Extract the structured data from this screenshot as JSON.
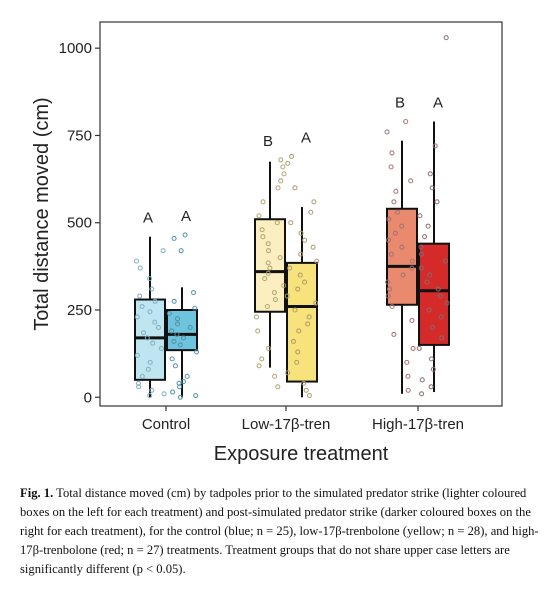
{
  "chart_data": {
    "type": "box",
    "xlabel": "Exposure treatment",
    "ylabel": "Total distance moved (cm)",
    "ylim": [
      -25,
      1075
    ],
    "yticks": [
      0,
      250,
      500,
      750,
      1000
    ],
    "ytick_labels": [
      "0",
      "250",
      "500",
      "750",
      "1000"
    ],
    "categories": [
      "Control",
      "Low-17β-tren",
      "High-17β-tren"
    ],
    "groups": [
      {
        "category": "Control",
        "boxes": [
          {
            "phase": "pre",
            "letter": "A",
            "fill": "#bfe6f0",
            "dot": "#7aaec0",
            "min": 0,
            "q1": 50,
            "median": 170,
            "q3": 280,
            "max": 460,
            "points": [
              5,
              20,
              40,
              60,
              80,
              100,
              120,
              140,
              155,
              170,
              185,
              200,
              215,
              230,
              245,
              260,
              275,
              290,
              310,
              340,
              370,
              390,
              420,
              10,
              30
            ]
          },
          {
            "phase": "post",
            "letter": "A",
            "fill": "#6ec4dc",
            "dot": "#4f8fa6",
            "min": 0,
            "q1": 135,
            "median": 180,
            "q3": 250,
            "max": 315,
            "points": [
              0,
              5,
              15,
              30,
              45,
              60,
              90,
              110,
              130,
              150,
              160,
              170,
              180,
              190,
              200,
              210,
              225,
              240,
              255,
              275,
              300,
              420,
              455,
              465,
              40
            ]
          }
        ]
      },
      {
        "category": "Low-17β-tren",
        "boxes": [
          {
            "phase": "pre",
            "letter": "B",
            "fill": "#fbefc0",
            "dot": "#b0a070",
            "min": 85,
            "q1": 245,
            "median": 360,
            "q3": 510,
            "max": 675,
            "points": [
              30,
              60,
              90,
              110,
              140,
              190,
              230,
              260,
              280,
              300,
              320,
              340,
              355,
              370,
              385,
              400,
              420,
              440,
              460,
              480,
              500,
              520,
              560,
              600,
              620,
              640,
              660,
              680
            ]
          },
          {
            "phase": "post",
            "letter": "A",
            "fill": "#f7e27c",
            "dot": "#a89a6a",
            "min": 0,
            "q1": 45,
            "median": 260,
            "q3": 385,
            "max": 545,
            "points": [
              5,
              20,
              40,
              70,
              100,
              130,
              160,
              190,
              210,
              230,
              250,
              270,
              290,
              310,
              330,
              350,
              370,
              390,
              410,
              430,
              450,
              470,
              500,
              530,
              560,
              600,
              670,
              690
            ]
          }
        ]
      },
      {
        "category": "High-17β-tren",
        "boxes": [
          {
            "phase": "pre",
            "letter": "B",
            "fill": "#e98a6e",
            "dot": "#a07070",
            "min": 10,
            "q1": 265,
            "median": 375,
            "q3": 540,
            "max": 735,
            "points": [
              20,
              60,
              100,
              140,
              180,
              220,
              260,
              290,
              310,
              330,
              350,
              370,
              390,
              410,
              430,
              450,
              470,
              490,
              510,
              530,
              560,
              590,
              620,
              660,
              700,
              760,
              790
            ]
          },
          {
            "phase": "post",
            "letter": "A",
            "fill": "#d42a2a",
            "dot": "#8a6a6a",
            "min": 15,
            "q1": 150,
            "median": 305,
            "q3": 440,
            "max": 790,
            "points": [
              10,
              30,
              50,
              80,
              110,
              140,
              170,
              200,
              230,
              250,
              270,
              290,
              310,
              330,
              350,
              370,
              390,
              410,
              430,
              460,
              490,
              520,
              560,
              600,
              640,
              720,
              1030
            ]
          }
        ]
      }
    ]
  },
  "caption": {
    "label": "Fig. 1.",
    "text": "Total distance moved (cm) by tadpoles prior to the simulated predator strike (lighter coloured boxes on the left for each treatment) and post-simulated predator strike (darker coloured boxes on the right for each treatment), for the control (blue; n = 25), low-17β-trenbolone (yellow; n = 28), and high-17β-trenbolone (red; n = 27) treatments. Treatment groups that do not share upper case letters are significantly different (p < 0.05)."
  }
}
